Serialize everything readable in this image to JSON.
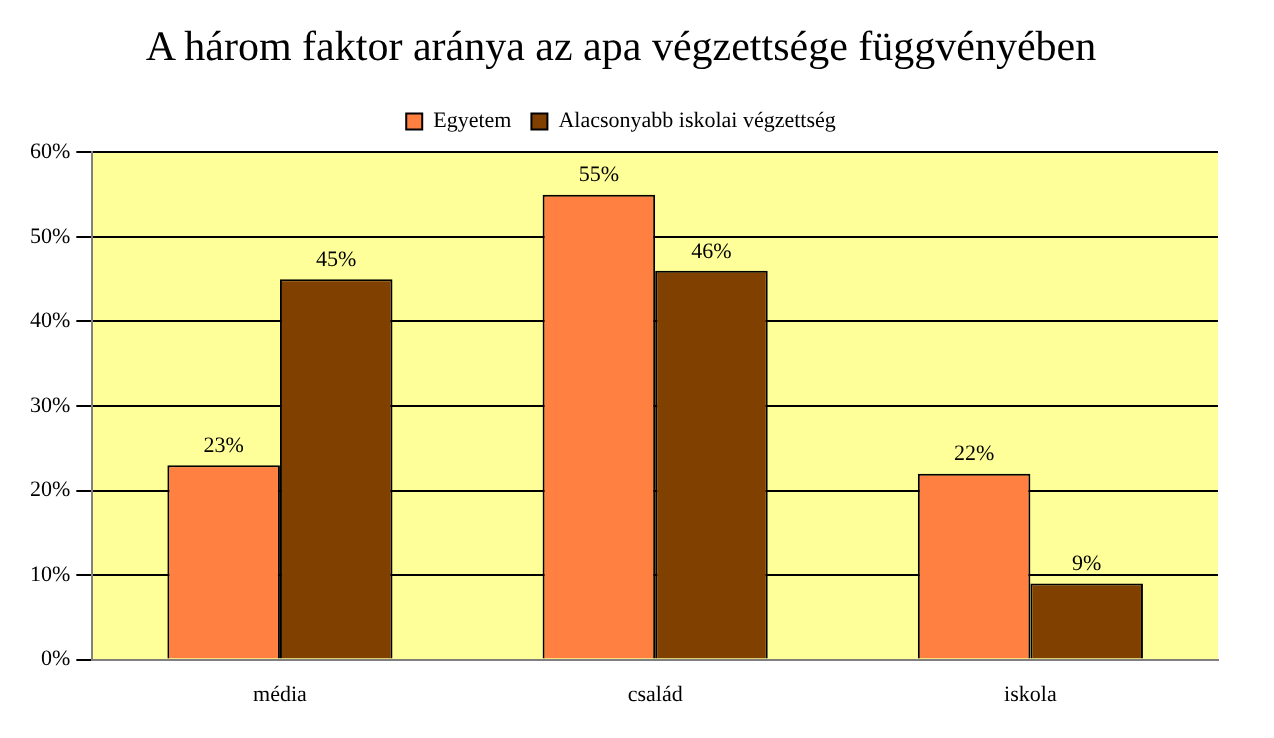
{
  "chart_data": {
    "type": "bar",
    "title": "A három faktor aránya az apa végzettsége függvényében",
    "categories": [
      "média",
      "család",
      "iskola"
    ],
    "series": [
      {
        "name": "Egyetem",
        "color": "#ff8040",
        "values": [
          23,
          55,
          22
        ],
        "value_labels": [
          "23%",
          "55%",
          "22%"
        ]
      },
      {
        "name": "Alacsonyabb iskolai végzettség",
        "color": "#804000",
        "values": [
          45,
          46,
          9
        ],
        "value_labels": [
          "45%",
          "46%",
          "9%"
        ]
      }
    ],
    "ylim": [
      0,
      60
    ],
    "yticks": [
      {
        "value": 0,
        "label": "0%"
      },
      {
        "value": 10,
        "label": "10%"
      },
      {
        "value": 20,
        "label": "20%"
      },
      {
        "value": 30,
        "label": "30%"
      },
      {
        "value": 40,
        "label": "40%"
      },
      {
        "value": 50,
        "label": "50%"
      },
      {
        "value": 60,
        "label": "60%"
      }
    ],
    "grid": "y",
    "legend": "top"
  }
}
